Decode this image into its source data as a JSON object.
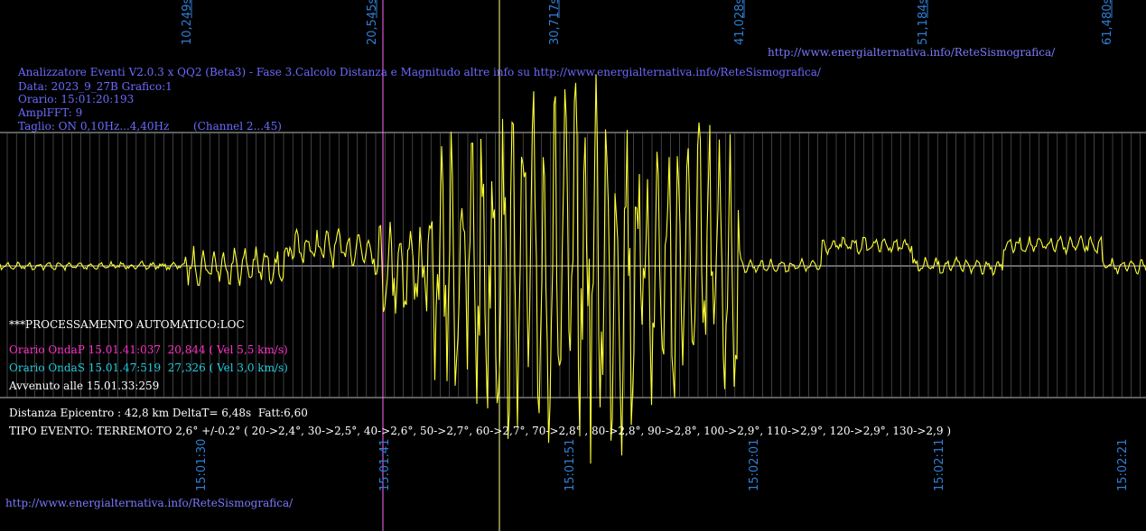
{
  "header": {
    "title": "Analizzatore Eventi V2.0.3 x QQ2 (Beta3) - Fase 3.Calcolo Distanza e Magnitudo altre info su http://www.energialternativa.info/ReteSismografica/",
    "data": "Data: 2023_9_27B Grafico:1",
    "orario": "Orario: 15:01:20:193",
    "ampl": "AmplFFT: 9",
    "taglio": "Taglio: ON 0,10Hz...4,40Hz       (Channel 2...45)",
    "top_link": "http://www.energialternativa.info/ReteSismografica/"
  },
  "top_time_labels": [
    "10,249s",
    "20,545s",
    "30,717s",
    "41,028s",
    "51,184s",
    "61,480s"
  ],
  "bottom_time_labels": [
    "15:01:30",
    "15:01:41",
    "15:01:51",
    "15:02:01",
    "15:02:11",
    "15:02:21"
  ],
  "processing": {
    "heading": "***PROCESSAMENTO AUTOMATICO:LOC",
    "onda_p": "Orario OndaP 15.01.41:037  20,844 ( Vel 5,5 km/s)",
    "onda_s": "Orario OndaS 15.01.47:519  27,326 ( Vel 3,0 km/s)",
    "avvenuto": "Avvenuto alle 15.01.33:259"
  },
  "result": {
    "distanza": "Distanza Epicentro : 42,8 km DeltaT= 6,48s  Fatt:6,60",
    "tipo": "TIPO EVENTO: TERREMOTO 2,6° +/-0.2° ( 20->2,4°, 30->2,5°, 40->2,6°, 50->2,7°, 60->2,7°, 70->2,8° , 80->2,8°, 90->2,8°, 100->2,9°, 110->2,9°, 120->2,9°, 130->2,9 )"
  },
  "footer_link": "http://www.energialternativa.info/ReteSismografica/",
  "colors": {
    "trace": "#ffff33",
    "grid": "#6a6a6a",
    "p_marker": "#ff66ff",
    "s_marker": "#ffff99",
    "time_label": "#2f7fd4"
  }
}
